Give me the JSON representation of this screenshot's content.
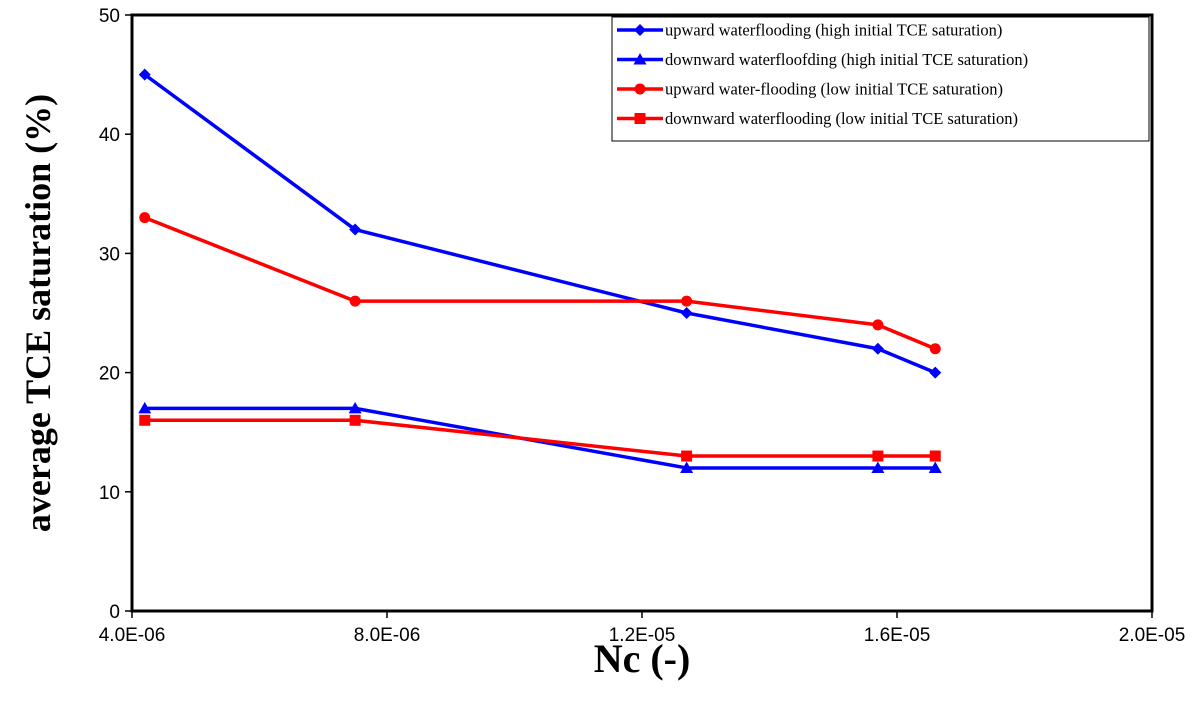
{
  "chart_data": {
    "type": "line",
    "title": "",
    "xlabel": "Nc (-)",
    "ylabel": "average TCE saturation (%)",
    "xlim": [
      4e-06,
      2e-05
    ],
    "ylim": [
      0,
      50
    ],
    "xticks": [
      4e-06,
      8e-06,
      1.2e-05,
      1.6e-05,
      2e-05
    ],
    "xtick_labels": [
      "4.0E-06",
      "8.0E-06",
      "1.2E-05",
      "1.6E-05",
      "2.0E-05"
    ],
    "yticks": [
      0,
      10,
      20,
      30,
      40,
      50
    ],
    "ytick_labels": [
      "0",
      "10",
      "20",
      "30",
      "40",
      "50"
    ],
    "grid": false,
    "legend_position": "top-right",
    "series": [
      {
        "name": "upward waterflooding (high initial TCE saturation)",
        "color": "#0000FF",
        "marker": "diamond",
        "x": [
          4.2e-06,
          7.5e-06,
          1.27e-05,
          1.57e-05,
          1.66e-05
        ],
        "y": [
          45,
          32,
          25,
          22,
          20
        ]
      },
      {
        "name": "downward waterfloofding (high initial TCE saturation)",
        "color": "#0000FF",
        "marker": "triangle",
        "x": [
          4.2e-06,
          7.5e-06,
          1.27e-05,
          1.57e-05,
          1.66e-05
        ],
        "y": [
          17,
          17,
          12,
          12,
          12
        ]
      },
      {
        "name": "upward water-flooding (low initial TCE saturation)",
        "color": "#FF0000",
        "marker": "circle",
        "x": [
          4.2e-06,
          7.5e-06,
          1.27e-05,
          1.57e-05,
          1.66e-05
        ],
        "y": [
          33,
          26,
          26,
          24,
          22
        ]
      },
      {
        "name": "downward waterflooding (low initial TCE saturation)",
        "color": "#FF0000",
        "marker": "square",
        "x": [
          4.2e-06,
          7.5e-06,
          1.27e-05,
          1.57e-05,
          1.66e-05
        ],
        "y": [
          16,
          16,
          13,
          13,
          13
        ]
      }
    ]
  }
}
